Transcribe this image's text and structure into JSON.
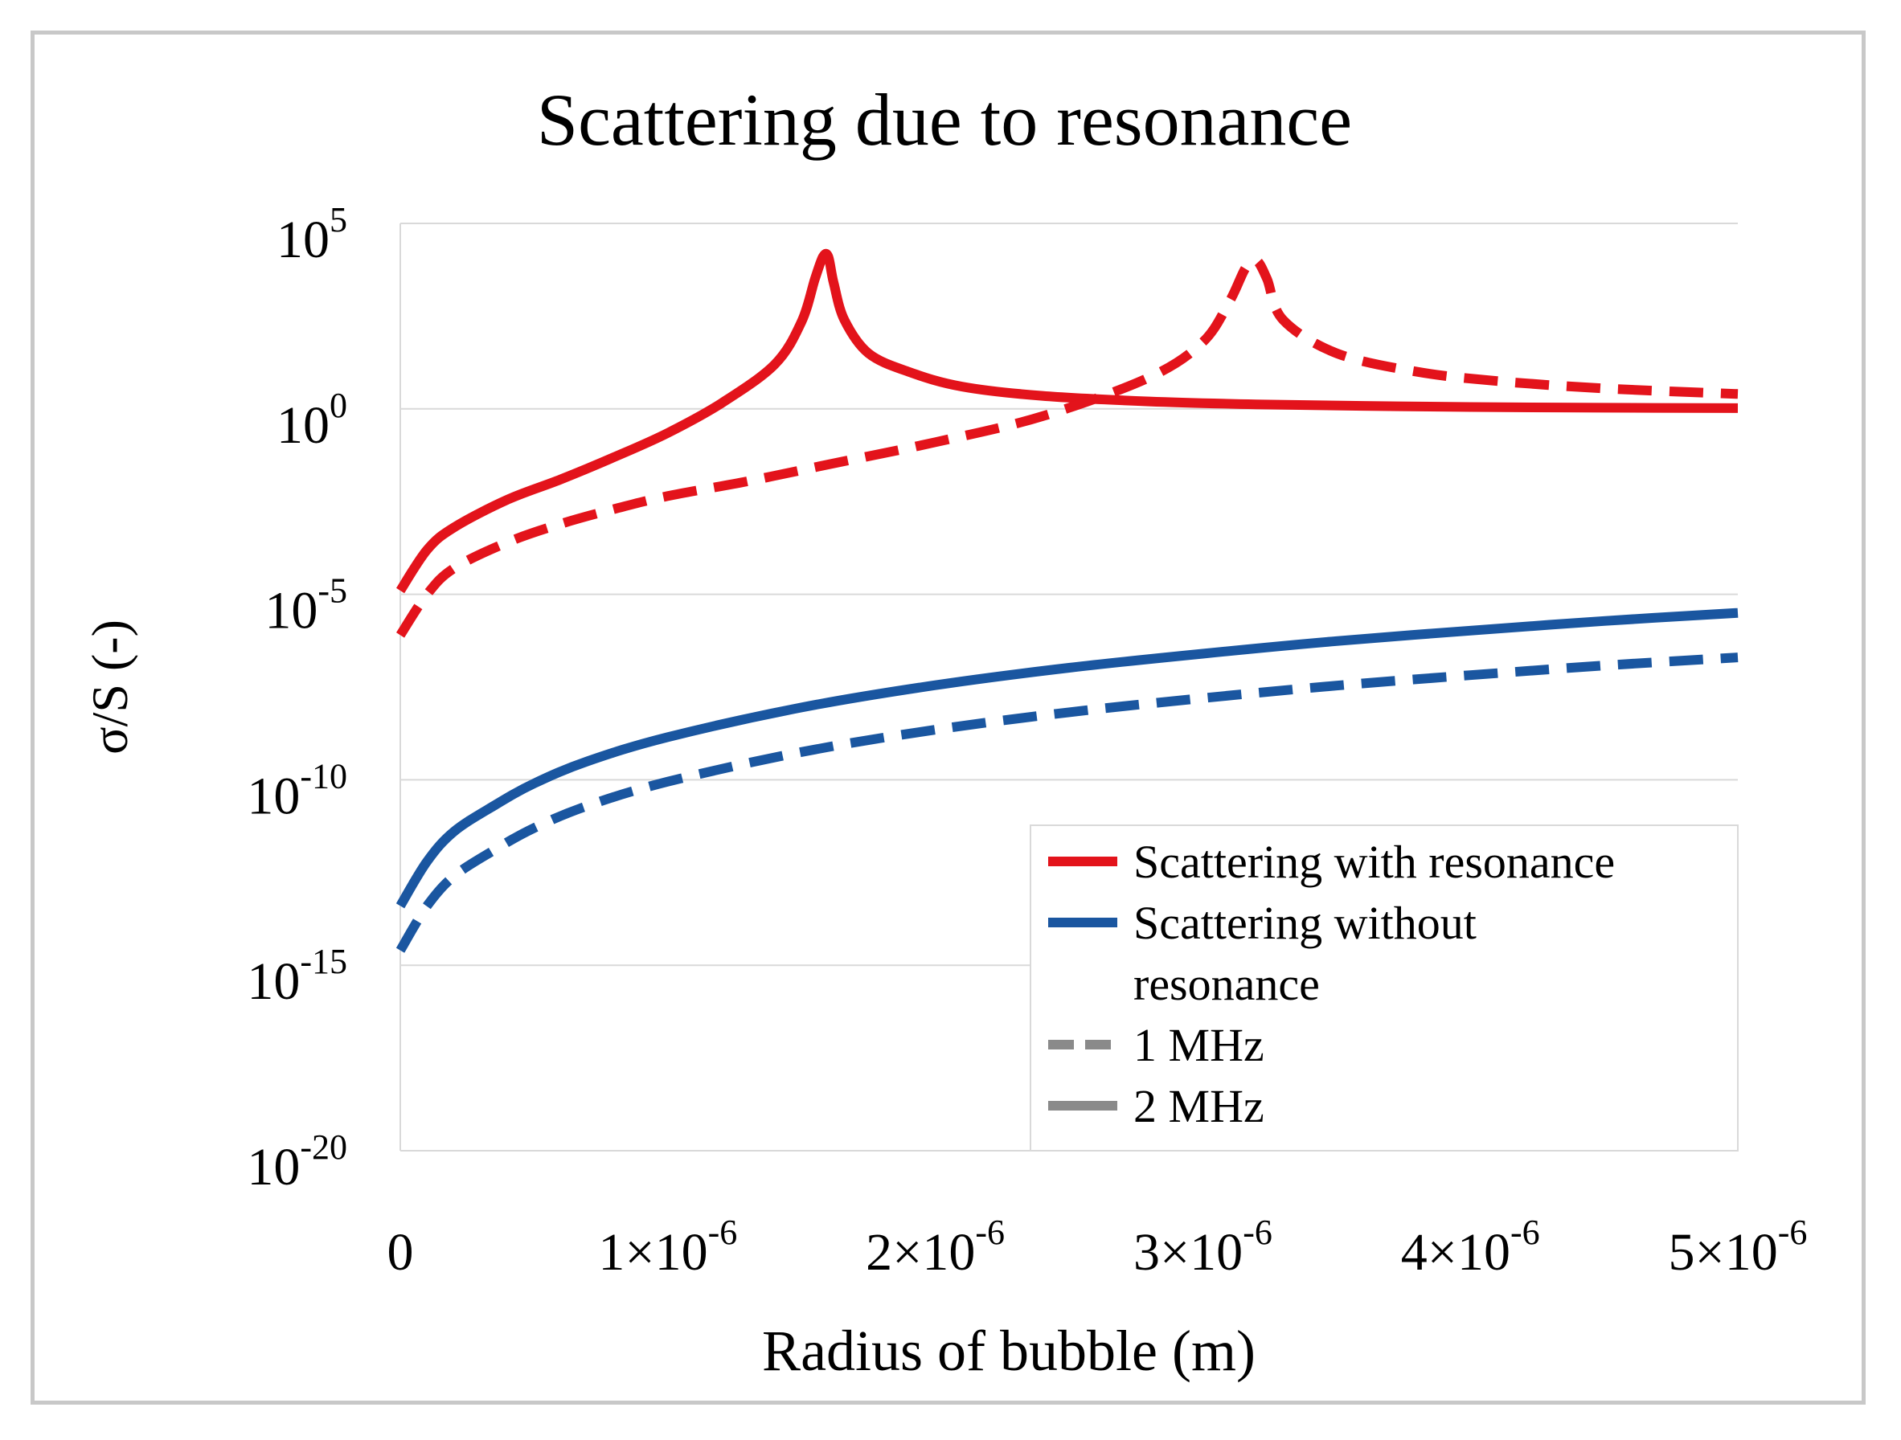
{
  "chart_data": {
    "type": "line",
    "title": "Scattering due to resonance",
    "xlabel": "Radius of bubble (m)",
    "ylabel": "σ/S (-)",
    "y_scale": "log",
    "xlim": [
      0,
      5e-06
    ],
    "ylim_exponent": [
      -20,
      5
    ],
    "x_ticks": [
      {
        "value": 0,
        "label": "0"
      },
      {
        "value": 1e-06,
        "mantissa": "1×10",
        "exp": "-6"
      },
      {
        "value": 2e-06,
        "mantissa": "2×10",
        "exp": "-6"
      },
      {
        "value": 3e-06,
        "mantissa": "3×10",
        "exp": "-6"
      },
      {
        "value": 4e-06,
        "mantissa": "4×10",
        "exp": "-6"
      },
      {
        "value": 5e-06,
        "mantissa": "5×10",
        "exp": "-6"
      }
    ],
    "y_ticks": [
      {
        "exp_value": 5,
        "base": "10",
        "exp": "5"
      },
      {
        "exp_value": 0,
        "base": "10",
        "exp": "0"
      },
      {
        "exp_value": -5,
        "base": "10",
        "exp": "-5"
      },
      {
        "exp_value": -10,
        "base": "10",
        "exp": "-10"
      },
      {
        "exp_value": -15,
        "base": "10",
        "exp": "-15"
      },
      {
        "exp_value": -20,
        "base": "10",
        "exp": "-20"
      }
    ],
    "grid": true,
    "legend_position": "bottom-right",
    "legend": [
      {
        "label": "Scattering with resonance",
        "color": "#e3131b",
        "style": "solid"
      },
      {
        "label": "Scattering without",
        "label2": "resonance",
        "color": "#1a56a0",
        "style": "solid"
      },
      {
        "label": "1 MHz",
        "color": "#8a8a8a",
        "style": "dashed"
      },
      {
        "label": "2 MHz",
        "color": "#8a8a8a",
        "style": "solid"
      }
    ],
    "series": [
      {
        "name": "Scattering with resonance, 2 MHz",
        "color": "#e3131b",
        "dash": false,
        "x": [
          0,
          1e-07,
          2e-07,
          4e-07,
          6e-07,
          8e-07,
          1e-06,
          1.2e-06,
          1.4e-06,
          1.5e-06,
          1.55e-06,
          1.58e-06,
          1.6e-06,
          1.62e-06,
          1.66e-06,
          1.75e-06,
          1.9e-06,
          2.1e-06,
          2.4e-06,
          2.8e-06,
          3.2e-06,
          3.6e-06,
          4e-06,
          4.5e-06,
          5e-06
        ],
        "log10_y": [
          -4.9,
          -3.8,
          -3.2,
          -2.45,
          -1.9,
          -1.3,
          -0.65,
          0.15,
          1.2,
          2.35,
          3.5,
          4.1,
          4.1,
          3.4,
          2.4,
          1.5,
          1.0,
          0.6,
          0.35,
          0.2,
          0.12,
          0.08,
          0.05,
          0.03,
          0.02
        ]
      },
      {
        "name": "Scattering with resonance, 1 MHz",
        "color": "#e3131b",
        "dash": true,
        "x": [
          0,
          1e-07,
          2e-07,
          4e-07,
          6e-07,
          8e-07,
          1e-06,
          1.3e-06,
          1.6e-06,
          2e-06,
          2.4e-06,
          2.8e-06,
          3e-06,
          3.1e-06,
          3.16e-06,
          3.2e-06,
          3.24e-06,
          3.3e-06,
          3.5e-06,
          3.8e-06,
          4.1e-06,
          4.5e-06,
          5e-06
        ],
        "log10_y": [
          -6.1,
          -5.0,
          -4.3,
          -3.6,
          -3.1,
          -2.7,
          -2.35,
          -1.95,
          -1.5,
          -0.9,
          -0.2,
          0.85,
          1.8,
          2.9,
          3.8,
          4.0,
          3.5,
          2.4,
          1.5,
          1.0,
          0.75,
          0.55,
          0.4
        ]
      },
      {
        "name": "Scattering without resonance, 2 MHz",
        "color": "#1a56a0",
        "dash": false,
        "x": [
          0,
          1e-07,
          2e-07,
          3.5e-07,
          5e-07,
          7e-07,
          1e-06,
          1.5e-06,
          2e-06,
          2.5e-06,
          3e-06,
          3.5e-06,
          4e-06,
          4.5e-06,
          5e-06
        ],
        "log10_y": [
          -13.4,
          -12.2,
          -11.4,
          -10.7,
          -10.1,
          -9.5,
          -8.85,
          -8.05,
          -7.45,
          -6.98,
          -6.6,
          -6.26,
          -5.98,
          -5.72,
          -5.5
        ]
      },
      {
        "name": "Scattering without resonance, 1 MHz",
        "color": "#1a56a0",
        "dash": true,
        "x": [
          0,
          1e-07,
          2e-07,
          3.5e-07,
          5e-07,
          7e-07,
          1e-06,
          1.5e-06,
          2e-06,
          2.5e-06,
          3e-06,
          3.5e-06,
          4e-06,
          4.5e-06,
          5e-06
        ],
        "log10_y": [
          -14.6,
          -13.4,
          -12.6,
          -11.9,
          -11.3,
          -10.7,
          -10.05,
          -9.25,
          -8.65,
          -8.18,
          -7.8,
          -7.46,
          -7.18,
          -6.92,
          -6.7
        ]
      }
    ]
  }
}
